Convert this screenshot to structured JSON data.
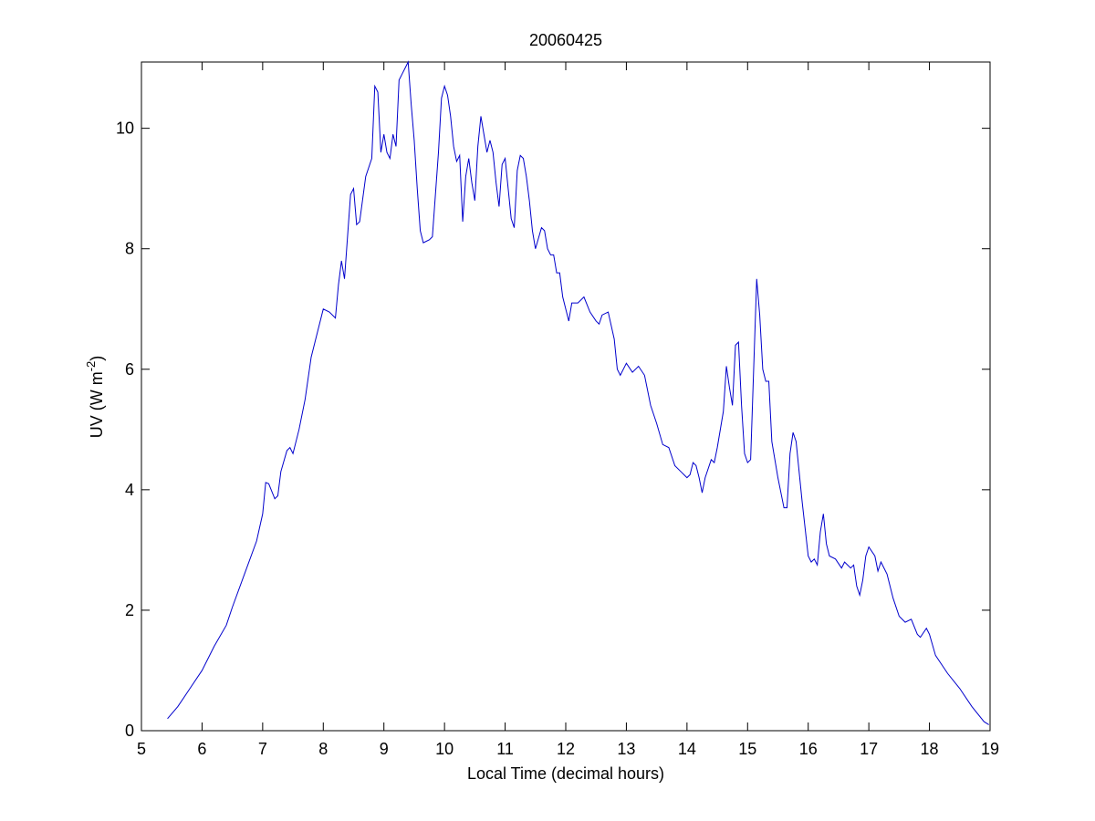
{
  "chart_data": {
    "type": "line",
    "title": "20060425",
    "xlabel": "Local Time (decimal hours)",
    "ylabel": [
      "UV (W m",
      "-2",
      ")"
    ],
    "x": [
      5.43,
      5.6,
      5.8,
      6.0,
      6.2,
      6.4,
      6.5,
      6.7,
      6.9,
      7.0,
      7.05,
      7.1,
      7.2,
      7.25,
      7.3,
      7.4,
      7.45,
      7.5,
      7.6,
      7.7,
      7.8,
      7.9,
      8.0,
      8.1,
      8.2,
      8.25,
      8.3,
      8.35,
      8.45,
      8.5,
      8.55,
      8.6,
      8.7,
      8.8,
      8.85,
      8.9,
      8.95,
      9.0,
      9.05,
      9.1,
      9.15,
      9.2,
      9.25,
      9.3,
      9.35,
      9.4,
      9.45,
      9.5,
      9.55,
      9.6,
      9.65,
      9.75,
      9.8,
      9.9,
      9.95,
      10.0,
      10.05,
      10.1,
      10.15,
      10.2,
      10.25,
      10.3,
      10.35,
      10.4,
      10.45,
      10.5,
      10.55,
      10.6,
      10.65,
      10.7,
      10.75,
      10.8,
      10.85,
      10.9,
      10.95,
      11.0,
      11.05,
      11.1,
      11.15,
      11.2,
      11.25,
      11.3,
      11.35,
      11.4,
      11.45,
      11.5,
      11.6,
      11.65,
      11.7,
      11.75,
      11.8,
      11.85,
      11.9,
      11.95,
      12.0,
      12.05,
      12.1,
      12.2,
      12.3,
      12.4,
      12.5,
      12.55,
      12.6,
      12.7,
      12.8,
      12.85,
      12.9,
      13.0,
      13.1,
      13.2,
      13.3,
      13.4,
      13.5,
      13.6,
      13.7,
      13.8,
      13.9,
      14.0,
      14.05,
      14.1,
      14.15,
      14.2,
      14.25,
      14.3,
      14.4,
      14.45,
      14.5,
      14.6,
      14.65,
      14.7,
      14.75,
      14.8,
      14.85,
      14.9,
      14.95,
      15.0,
      15.05,
      15.1,
      15.15,
      15.2,
      15.25,
      15.3,
      15.35,
      15.4,
      15.5,
      15.6,
      15.65,
      15.7,
      15.75,
      15.8,
      15.9,
      16.0,
      16.05,
      16.1,
      16.15,
      16.2,
      16.25,
      16.3,
      16.35,
      16.45,
      16.55,
      16.6,
      16.7,
      16.75,
      16.8,
      16.85,
      16.9,
      16.95,
      17.0,
      17.1,
      17.15,
      17.2,
      17.3,
      17.4,
      17.5,
      17.6,
      17.7,
      17.8,
      17.85,
      17.95,
      18.0,
      18.1,
      18.3,
      18.5,
      18.7,
      18.9,
      18.98
    ],
    "series": [
      {
        "color": "#0000cc",
        "values": [
          0.2,
          0.4,
          0.7,
          1.0,
          1.4,
          1.75,
          2.05,
          2.6,
          3.15,
          3.6,
          4.12,
          4.1,
          3.85,
          3.9,
          4.3,
          4.65,
          4.7,
          4.6,
          5.0,
          5.5,
          6.2,
          6.6,
          7.0,
          6.95,
          6.85,
          7.4,
          7.8,
          7.5,
          8.9,
          9.0,
          8.4,
          8.45,
          9.2,
          9.5,
          10.7,
          10.6,
          9.6,
          9.9,
          9.6,
          9.5,
          9.9,
          9.7,
          10.8,
          10.9,
          11.0,
          11.1,
          10.4,
          9.8,
          9.0,
          8.3,
          8.1,
          8.15,
          8.2,
          9.6,
          10.5,
          10.7,
          10.55,
          10.2,
          9.7,
          9.45,
          9.55,
          8.45,
          9.2,
          9.5,
          9.1,
          8.8,
          9.7,
          10.2,
          9.9,
          9.6,
          9.8,
          9.6,
          9.1,
          8.7,
          9.4,
          9.5,
          9.0,
          8.5,
          8.35,
          9.3,
          9.55,
          9.5,
          9.2,
          8.8,
          8.3,
          8.0,
          8.35,
          8.3,
          8.0,
          7.9,
          7.9,
          7.6,
          7.6,
          7.2,
          7.0,
          6.8,
          7.1,
          7.1,
          7.2,
          6.95,
          6.8,
          6.75,
          6.9,
          6.95,
          6.5,
          6.0,
          5.9,
          6.1,
          5.95,
          6.05,
          5.9,
          5.4,
          5.1,
          4.75,
          4.7,
          4.4,
          4.3,
          4.2,
          4.25,
          4.45,
          4.4,
          4.2,
          3.95,
          4.2,
          4.5,
          4.45,
          4.7,
          5.3,
          6.05,
          5.7,
          5.4,
          6.4,
          6.45,
          5.4,
          4.6,
          4.45,
          4.5,
          6.0,
          7.5,
          6.9,
          6.0,
          5.8,
          5.8,
          4.8,
          4.2,
          3.7,
          3.7,
          4.6,
          4.95,
          4.8,
          3.8,
          2.9,
          2.8,
          2.85,
          2.75,
          3.3,
          3.6,
          3.1,
          2.9,
          2.85,
          2.7,
          2.8,
          2.7,
          2.75,
          2.4,
          2.25,
          2.5,
          2.9,
          3.05,
          2.9,
          2.65,
          2.8,
          2.6,
          2.2,
          1.9,
          1.8,
          1.85,
          1.6,
          1.55,
          1.7,
          1.6,
          1.25,
          0.95,
          0.7,
          0.4,
          0.15,
          0.1
        ]
      }
    ],
    "xlim": [
      5,
      19
    ],
    "xticks": [
      5,
      6,
      7,
      8,
      9,
      10,
      11,
      12,
      13,
      14,
      15,
      16,
      17,
      18,
      19
    ],
    "ylim": [
      0,
      11.1
    ],
    "yticks": [
      0,
      2,
      4,
      6,
      8,
      10
    ],
    "grid": false
  }
}
